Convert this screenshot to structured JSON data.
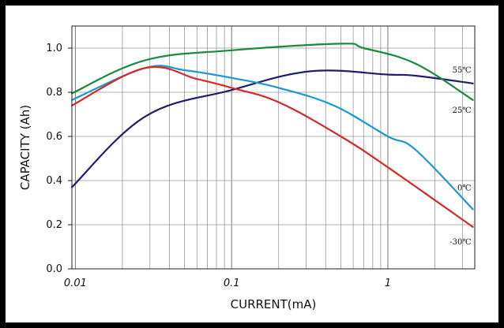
{
  "chart_data": {
    "type": "line",
    "title": "",
    "xlabel": "CURRENT(mA)",
    "ylabel": "CAPACITY (Ah)",
    "x_scale": "log",
    "xlim": [
      0.0095,
      3.6
    ],
    "ylim": [
      0,
      1.1
    ],
    "grid": true,
    "x_ticks": [
      {
        "value": 0.01,
        "label": "0.01"
      },
      {
        "value": 0.1,
        "label": "0.1"
      },
      {
        "value": 1,
        "label": "1"
      }
    ],
    "y_ticks": [
      {
        "value": 0.0,
        "label": "0.0"
      },
      {
        "value": 0.2,
        "label": "0.2"
      },
      {
        "value": 0.4,
        "label": "0.4"
      },
      {
        "value": 0.6,
        "label": "0.6"
      },
      {
        "value": 0.8,
        "label": "0.8"
      },
      {
        "value": 1.0,
        "label": "1.0"
      }
    ],
    "series": [
      {
        "name": "55℃",
        "color": "#1f1d6e",
        "x": [
          0.0095,
          0.028,
          0.1,
          0.32,
          1.0,
          1.5,
          3.5
        ],
        "y": [
          0.37,
          0.69,
          0.81,
          0.895,
          0.88,
          0.875,
          0.84
        ]
      },
      {
        "name": "25℃",
        "color": "#1a8a3c",
        "x": [
          0.0095,
          0.028,
          0.1,
          0.5,
          0.7,
          1.5,
          3.5
        ],
        "y": [
          0.795,
          0.945,
          0.99,
          1.02,
          1.0,
          0.93,
          0.765
        ]
      },
      {
        "name": "0℃",
        "color": "#1a98d6",
        "x": [
          0.0095,
          0.028,
          0.05,
          0.1,
          0.2,
          0.45,
          1.0,
          1.5,
          3.5
        ],
        "y": [
          0.765,
          0.91,
          0.9,
          0.865,
          0.82,
          0.74,
          0.6,
          0.54,
          0.27
        ]
      },
      {
        "name": "-30℃",
        "color": "#d42a28",
        "x": [
          0.0095,
          0.028,
          0.06,
          0.1,
          0.2,
          0.5,
          1.0,
          3.5
        ],
        "y": [
          0.74,
          0.91,
          0.86,
          0.82,
          0.755,
          0.6,
          0.46,
          0.19
        ]
      }
    ]
  }
}
